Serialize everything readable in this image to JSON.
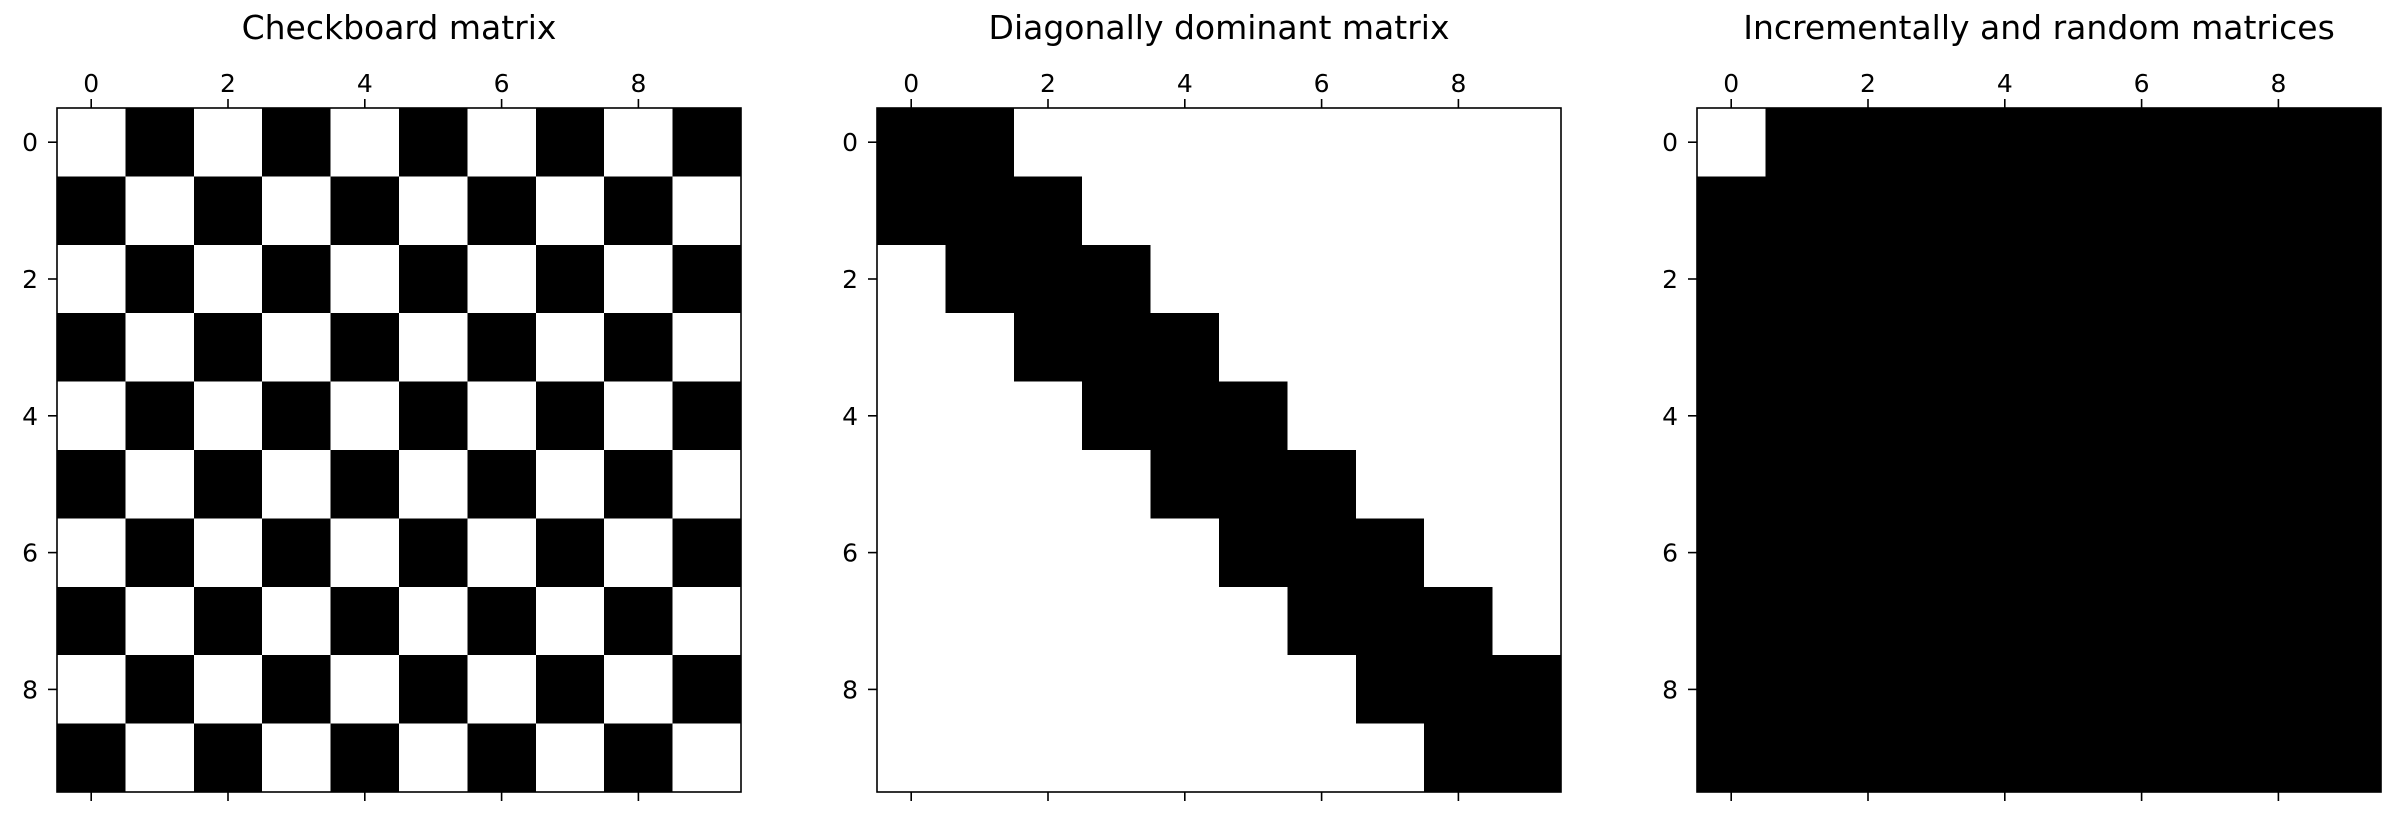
{
  "chart_data": [
    {
      "type": "heatmap",
      "title": "Checkboard matrix",
      "xlabel": "",
      "ylabel": "",
      "rows": 10,
      "cols": 10,
      "x_ticks": [
        0,
        2,
        4,
        6,
        8
      ],
      "y_ticks": [
        0,
        2,
        4,
        6,
        8
      ],
      "x_tick_position": "top",
      "colormap": "gray",
      "grid": false,
      "values": [
        [
          1,
          0,
          1,
          0,
          1,
          0,
          1,
          0,
          1,
          0
        ],
        [
          0,
          1,
          0,
          1,
          0,
          1,
          0,
          1,
          0,
          1
        ],
        [
          1,
          0,
          1,
          0,
          1,
          0,
          1,
          0,
          1,
          0
        ],
        [
          0,
          1,
          0,
          1,
          0,
          1,
          0,
          1,
          0,
          1
        ],
        [
          1,
          0,
          1,
          0,
          1,
          0,
          1,
          0,
          1,
          0
        ],
        [
          0,
          1,
          0,
          1,
          0,
          1,
          0,
          1,
          0,
          1
        ],
        [
          1,
          0,
          1,
          0,
          1,
          0,
          1,
          0,
          1,
          0
        ],
        [
          0,
          1,
          0,
          1,
          0,
          1,
          0,
          1,
          0,
          1
        ],
        [
          1,
          0,
          1,
          0,
          1,
          0,
          1,
          0,
          1,
          0
        ],
        [
          0,
          1,
          0,
          1,
          0,
          1,
          0,
          1,
          0,
          1
        ]
      ]
    },
    {
      "type": "heatmap",
      "title": "Diagonally dominant matrix",
      "xlabel": "",
      "ylabel": "",
      "rows": 10,
      "cols": 10,
      "x_ticks": [
        0,
        2,
        4,
        6,
        8
      ],
      "y_ticks": [
        0,
        2,
        4,
        6,
        8
      ],
      "x_tick_position": "top",
      "colormap": "gray",
      "grid": false,
      "values": [
        [
          0,
          0,
          1,
          1,
          1,
          1,
          1,
          1,
          1,
          1
        ],
        [
          0,
          0,
          0,
          1,
          1,
          1,
          1,
          1,
          1,
          1
        ],
        [
          1,
          0,
          0,
          0,
          1,
          1,
          1,
          1,
          1,
          1
        ],
        [
          1,
          1,
          0,
          0,
          0,
          1,
          1,
          1,
          1,
          1
        ],
        [
          1,
          1,
          1,
          0,
          0,
          0,
          1,
          1,
          1,
          1
        ],
        [
          1,
          1,
          1,
          1,
          0,
          0,
          0,
          1,
          1,
          1
        ],
        [
          1,
          1,
          1,
          1,
          1,
          0,
          0,
          0,
          1,
          1
        ],
        [
          1,
          1,
          1,
          1,
          1,
          1,
          0,
          0,
          0,
          1
        ],
        [
          1,
          1,
          1,
          1,
          1,
          1,
          1,
          0,
          0,
          0
        ],
        [
          1,
          1,
          1,
          1,
          1,
          1,
          1,
          1,
          0,
          0
        ]
      ]
    },
    {
      "type": "heatmap",
      "title": "Incrementally and random matrices",
      "xlabel": "",
      "ylabel": "",
      "rows": 10,
      "cols": 10,
      "x_ticks": [
        0,
        2,
        4,
        6,
        8
      ],
      "y_ticks": [
        0,
        2,
        4,
        6,
        8
      ],
      "x_tick_position": "top",
      "colormap": "gray",
      "grid": false,
      "values": [
        [
          1,
          0,
          0,
          0,
          0,
          0,
          0,
          0,
          0,
          0
        ],
        [
          0,
          0,
          0,
          0,
          0,
          0,
          0,
          0,
          0,
          0
        ],
        [
          0,
          0,
          0,
          0,
          0,
          0,
          0,
          0,
          0,
          0
        ],
        [
          0,
          0,
          0,
          0,
          0,
          0,
          0,
          0,
          0,
          0
        ],
        [
          0,
          0,
          0,
          0,
          0,
          0,
          0,
          0,
          0,
          0
        ],
        [
          0,
          0,
          0,
          0,
          0,
          0,
          0,
          0,
          0,
          0
        ],
        [
          0,
          0,
          0,
          0,
          0,
          0,
          0,
          0,
          0,
          0
        ],
        [
          0,
          0,
          0,
          0,
          0,
          0,
          0,
          0,
          0,
          0
        ],
        [
          0,
          0,
          0,
          0,
          0,
          0,
          0,
          0,
          0,
          0
        ],
        [
          0,
          0,
          0,
          0,
          0,
          0,
          0,
          0,
          0,
          0
        ]
      ]
    }
  ]
}
